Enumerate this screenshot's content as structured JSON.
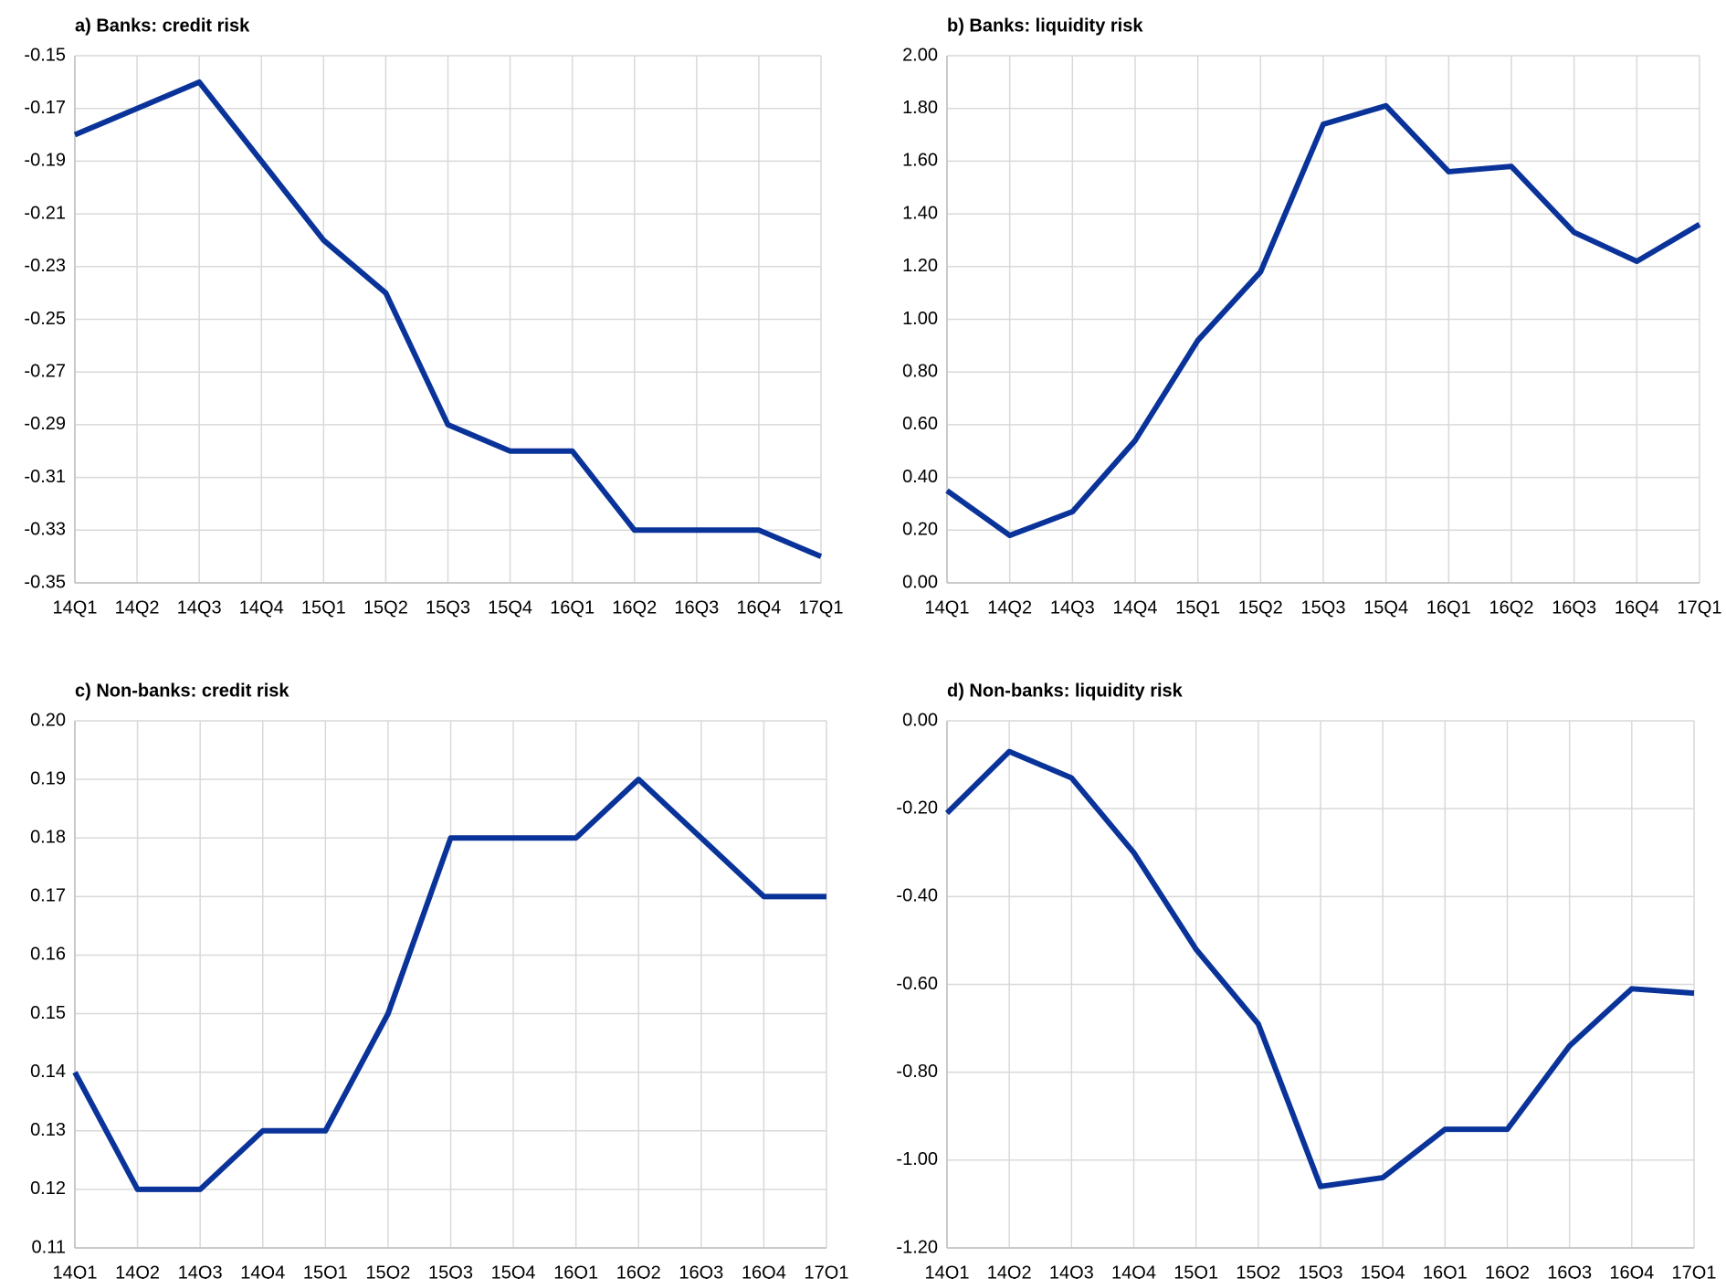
{
  "chart_data": [
    {
      "type": "line",
      "title": "a) Banks: credit risk",
      "categories": [
        "14Q1",
        "14Q2",
        "14Q3",
        "14Q4",
        "15Q1",
        "15Q2",
        "15Q3",
        "15Q4",
        "16Q1",
        "16Q2",
        "16Q3",
        "16Q4",
        "17Q1"
      ],
      "values": [
        -0.18,
        -0.17,
        -0.16,
        -0.19,
        -0.22,
        -0.24,
        -0.29,
        -0.3,
        -0.3,
        -0.33,
        -0.33,
        -0.33,
        -0.34
      ],
      "color": "#0a339a",
      "ylim": [
        -0.35,
        -0.15
      ],
      "yticks": [
        -0.15,
        -0.17,
        -0.19,
        -0.21,
        -0.23,
        -0.25,
        -0.27,
        -0.29,
        -0.31,
        -0.33,
        -0.35
      ],
      "grid": true
    },
    {
      "type": "line",
      "title": "b) Banks: liquidity risk",
      "categories": [
        "14Q1",
        "14Q2",
        "14Q3",
        "14Q4",
        "15Q1",
        "15Q2",
        "15Q3",
        "15Q4",
        "16Q1",
        "16Q2",
        "16Q3",
        "16Q4",
        "17Q1"
      ],
      "values": [
        0.35,
        0.18,
        0.27,
        0.54,
        0.92,
        1.18,
        1.74,
        1.81,
        1.56,
        1.58,
        1.33,
        1.22,
        1.36
      ],
      "color": "#0a339a",
      "ylim": [
        0,
        2
      ],
      "yticks": [
        {
          "value": 0,
          "label": "0.00"
        },
        {
          "value": 0.2,
          "label": "0.20"
        },
        {
          "value": 0.4,
          "label": "0.40"
        },
        {
          "value": 0.6,
          "label": "0.60"
        },
        {
          "value": 0.8,
          "label": "0.80"
        },
        {
          "value": 1,
          "label": "1.00"
        },
        {
          "value": 1.2,
          "label": "1.20"
        },
        {
          "value": 1.4,
          "label": "1.40"
        },
        {
          "value": 1.6,
          "label": "1.60"
        },
        {
          "value": 1.8,
          "label": "1.80"
        },
        {
          "value": 2,
          "label": "2.00"
        }
      ],
      "grid": true
    },
    {
      "type": "line",
      "title": "c) Non-banks: credit risk",
      "categories": [
        "14Q1",
        "14Q2",
        "14Q3",
        "14Q4",
        "15Q1",
        "15Q2",
        "15Q3",
        "15Q4",
        "16Q1",
        "16Q2",
        "16Q3",
        "16Q4",
        "17Q1"
      ],
      "values": [
        0.14,
        0.12,
        0.12,
        0.13,
        0.13,
        0.15,
        0.18,
        0.18,
        0.18,
        0.19,
        0.18,
        0.17,
        0.17
      ],
      "color": "#0a339a",
      "ylim": [
        0.11,
        0.2
      ],
      "yticks": [
        0.11,
        0.12,
        0.13,
        0.14,
        0.15,
        0.16,
        0.17,
        0.18,
        0.19,
        {
          "value": 0.2,
          "label": "0.20"
        }
      ],
      "grid": true
    },
    {
      "type": "line",
      "title": "d) Non-banks: liquidity risk",
      "categories": [
        "14Q1",
        "14Q2",
        "14Q3",
        "14Q4",
        "15Q1",
        "15Q2",
        "15Q3",
        "15Q4",
        "16Q1",
        "16Q2",
        "16Q3",
        "16Q4",
        "17Q1"
      ],
      "values": [
        -0.21,
        -0.07,
        -0.13,
        -0.3,
        -0.52,
        -0.69,
        -1.06,
        -1.04,
        -0.93,
        -0.93,
        -0.74,
        -0.61,
        -0.62
      ],
      "color": "#0a339a",
      "ylim": [
        -1.2,
        0
      ],
      "yticks": [
        {
          "value": 0,
          "label": "0.00"
        },
        {
          "value": -0.2,
          "label": "-0.20"
        },
        {
          "value": -0.4,
          "label": "-0.40"
        },
        {
          "value": -0.6,
          "label": "-0.60"
        },
        {
          "value": -0.8,
          "label": "-0.80"
        },
        {
          "value": -1,
          "label": "-1.00"
        },
        {
          "value": -1.2,
          "label": "-1.20"
        }
      ],
      "grid": true
    }
  ]
}
